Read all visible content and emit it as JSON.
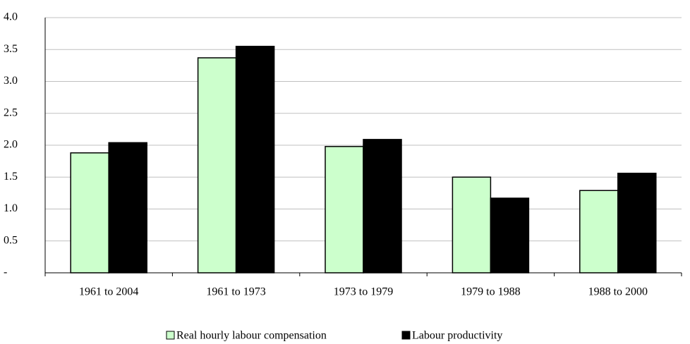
{
  "chart_data": {
    "type": "bar",
    "categories": [
      "1961 to 2004",
      "1961 to 1973",
      "1973 to 1979",
      "1979 to 1988",
      "1988 to 2000"
    ],
    "series": [
      {
        "name": "Real hourly labour compensation",
        "color": "#ccffcc",
        "values": [
          1.88,
          3.37,
          1.98,
          1.5,
          1.29
        ]
      },
      {
        "name": "Labour productivity",
        "color": "#000000",
        "values": [
          2.04,
          3.55,
          2.09,
          1.17,
          1.56
        ]
      }
    ],
    "ylim": [
      0,
      4
    ],
    "yticks": [
      {
        "value": 0,
        "label": "-"
      },
      0.5,
      {
        "value": 1,
        "label": "1.0"
      },
      1.5,
      {
        "value": 2,
        "label": "2.0"
      },
      2.5,
      {
        "value": 3,
        "label": "3.0"
      },
      3.5,
      {
        "value": 4,
        "label": "4.0"
      }
    ],
    "grid": true,
    "legend": "bottom"
  }
}
